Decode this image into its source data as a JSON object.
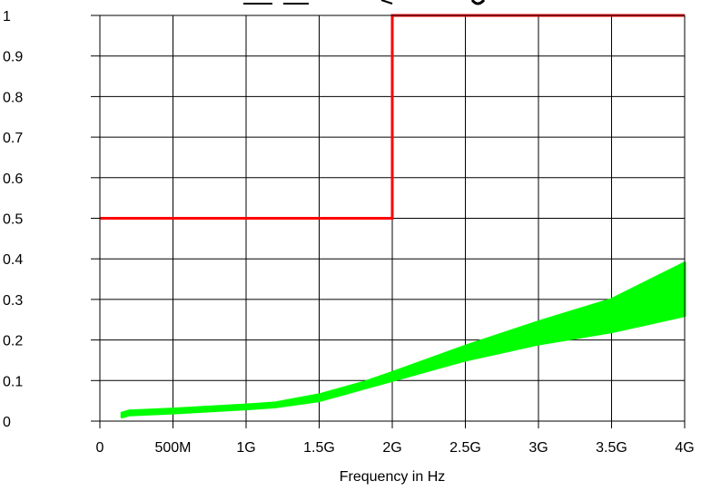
{
  "chart_data": {
    "type": "line",
    "xlabel": "Frequency in Hz",
    "ylabel": "",
    "x_unit": "Hz",
    "xlim": [
      0,
      4000000000
    ],
    "ylim": [
      0,
      1
    ],
    "x_ticks": [
      {
        "value": 0,
        "label": "0"
      },
      {
        "value": 500000000,
        "label": "500M"
      },
      {
        "value": 1000000000,
        "label": "1G"
      },
      {
        "value": 1500000000,
        "label": "1.5G"
      },
      {
        "value": 2000000000,
        "label": "2G"
      },
      {
        "value": 2500000000,
        "label": "2.5G"
      },
      {
        "value": 3000000000,
        "label": "3G"
      },
      {
        "value": 3500000000,
        "label": "3.5G"
      },
      {
        "value": 4000000000,
        "label": "4G"
      }
    ],
    "y_ticks": [
      {
        "value": 0,
        "label": "0"
      },
      {
        "value": 0.1,
        "label": "0.1"
      },
      {
        "value": 0.2,
        "label": "0.2"
      },
      {
        "value": 0.3,
        "label": "0.3"
      },
      {
        "value": 0.4,
        "label": "0.4"
      },
      {
        "value": 0.5,
        "label": "0.5"
      },
      {
        "value": 0.6,
        "label": "0.6"
      },
      {
        "value": 0.7,
        "label": "0.7"
      },
      {
        "value": 0.8,
        "label": "0.8"
      },
      {
        "value": 0.9,
        "label": "0.9"
      },
      {
        "value": 1,
        "label": "1"
      }
    ],
    "grid": true,
    "legend": "none",
    "series": [
      {
        "kind": "limit-line",
        "color": "#ff0000",
        "x": [
          0,
          2000000000,
          2000000000,
          4000000000
        ],
        "y": [
          0.5,
          0.5,
          1.0,
          1.0
        ]
      },
      {
        "kind": "band",
        "color": "#00ff00",
        "x": [
          150000000,
          200000000,
          500000000,
          1000000000,
          1200000000,
          1500000000,
          1800000000,
          2000000000,
          2500000000,
          3000000000,
          3500000000,
          4000000000
        ],
        "y_low": [
          0.01,
          0.015,
          0.02,
          0.03,
          0.035,
          0.05,
          0.08,
          0.1,
          0.15,
          0.19,
          0.22,
          0.26
        ],
        "y_high": [
          0.02,
          0.025,
          0.03,
          0.04,
          0.045,
          0.065,
          0.095,
          0.12,
          0.185,
          0.245,
          0.3,
          0.39
        ]
      }
    ]
  }
}
